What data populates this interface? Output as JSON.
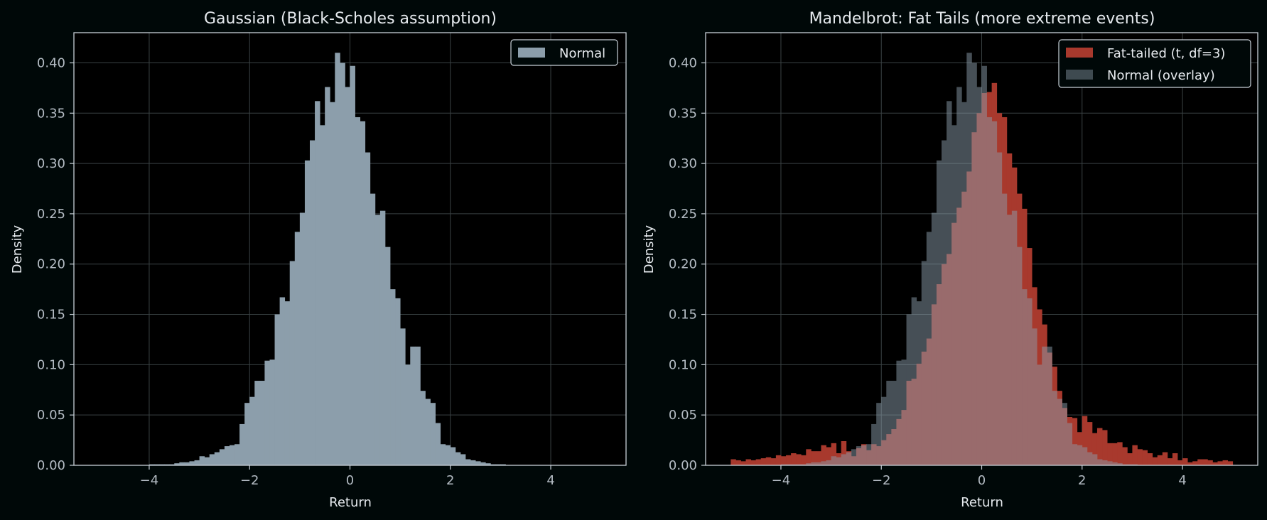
{
  "colors": {
    "background": "#000808",
    "axes_face": "#000000",
    "spine": "#c8d0d8",
    "grid": "#3a4244",
    "text": "#e6eaee",
    "tick_text": "#b4bcc4",
    "normal_fill": "#8c9eab",
    "fat_fill": "#a8392d",
    "overlay_fill": "#8c9eab",
    "legend_bg": "#000808",
    "legend_edge": "#c8d0d8"
  },
  "chart_data": [
    {
      "type": "bar",
      "title": "Gaussian (Black-Scholes assumption)",
      "xlabel": "Return",
      "ylabel": "Density",
      "xlim": [
        -5.5,
        5.5
      ],
      "ylim": [
        0,
        0.43
      ],
      "xticks": [
        -4,
        -2,
        0,
        2,
        4
      ],
      "xtick_labels": [
        "−4",
        "−2",
        "0",
        "2",
        "4"
      ],
      "yticks": [
        0,
        0.05,
        0.1,
        0.15,
        0.2,
        0.25,
        0.3,
        0.35,
        0.4
      ],
      "ytick_labels": [
        "0.00",
        "0.05",
        "0.10",
        "0.15",
        "0.20",
        "0.25",
        "0.30",
        "0.35",
        "0.40"
      ],
      "grid": true,
      "legend_position": "top-right",
      "series": [
        {
          "name": "Normal",
          "color_key": "normal_fill",
          "opacity": 1,
          "bin_start": -4.0,
          "bin_width": 0.1,
          "values": [
            0.001,
            0.001,
            0.001,
            0.001,
            0.001,
            0.002,
            0.003,
            0.003,
            0.004,
            0.005,
            0.009,
            0.008,
            0.011,
            0.013,
            0.016,
            0.019,
            0.02,
            0.021,
            0.041,
            0.062,
            0.068,
            0.084,
            0.084,
            0.104,
            0.105,
            0.15,
            0.167,
            0.163,
            0.203,
            0.232,
            0.251,
            0.303,
            0.323,
            0.362,
            0.338,
            0.376,
            0.361,
            0.41,
            0.4,
            0.376,
            0.397,
            0.346,
            0.342,
            0.311,
            0.27,
            0.249,
            0.253,
            0.217,
            0.175,
            0.166,
            0.136,
            0.1,
            0.118,
            0.118,
            0.074,
            0.066,
            0.062,
            0.042,
            0.021,
            0.02,
            0.018,
            0.013,
            0.011,
            0.006,
            0.005,
            0.004,
            0.003,
            0.002,
            0.001,
            0.001,
            0.001
          ]
        }
      ]
    },
    {
      "type": "bar",
      "title": "Mandelbrot: Fat Tails (more extreme events)",
      "xlabel": "Return",
      "ylabel": "Density",
      "xlim": [
        -5.5,
        5.5
      ],
      "ylim": [
        0,
        0.43
      ],
      "xticks": [
        -4,
        -2,
        0,
        2,
        4
      ],
      "xtick_labels": [
        "−4",
        "−2",
        "0",
        "2",
        "4"
      ],
      "yticks": [
        0,
        0.05,
        0.1,
        0.15,
        0.2,
        0.25,
        0.3,
        0.35,
        0.4
      ],
      "ytick_labels": [
        "0.00",
        "0.05",
        "0.10",
        "0.15",
        "0.20",
        "0.25",
        "0.30",
        "0.35",
        "0.40"
      ],
      "grid": true,
      "legend_position": "top-right",
      "series": [
        {
          "name": "Fat-tailed (t, df=3)",
          "color_key": "fat_fill",
          "opacity": 1,
          "bin_start": -5.0,
          "bin_width": 0.1,
          "values": [
            0.006,
            0.005,
            0.004,
            0.006,
            0.005,
            0.006,
            0.007,
            0.008,
            0.007,
            0.01,
            0.009,
            0.01,
            0.012,
            0.011,
            0.01,
            0.016,
            0.014,
            0.014,
            0.02,
            0.018,
            0.022,
            0.012,
            0.024,
            0.014,
            0.009,
            0.017,
            0.021,
            0.015,
            0.021,
            0.019,
            0.025,
            0.031,
            0.036,
            0.046,
            0.055,
            0.084,
            0.086,
            0.101,
            0.113,
            0.126,
            0.16,
            0.18,
            0.2,
            0.21,
            0.241,
            0.256,
            0.272,
            0.292,
            0.331,
            0.35,
            0.37,
            0.371,
            0.38,
            0.35,
            0.346,
            0.31,
            0.296,
            0.27,
            0.255,
            0.216,
            0.177,
            0.155,
            0.14,
            0.112,
            0.098,
            0.074,
            0.057,
            0.048,
            0.047,
            0.033,
            0.049,
            0.043,
            0.032,
            0.037,
            0.035,
            0.022,
            0.022,
            0.023,
            0.018,
            0.012,
            0.02,
            0.016,
            0.015,
            0.012,
            0.008,
            0.01,
            0.013,
            0.007,
            0.012,
            0.005,
            0.007,
            0.003,
            0.004,
            0.006,
            0.006,
            0.005,
            0.003,
            0.004,
            0.005,
            0.004
          ]
        },
        {
          "name": "Normal (overlay)",
          "color_key": "overlay_fill",
          "opacity": 0.5,
          "bin_start": -4.0,
          "bin_width": 0.1,
          "values": [
            0.001,
            0.001,
            0.001,
            0.001,
            0.001,
            0.002,
            0.003,
            0.003,
            0.004,
            0.005,
            0.009,
            0.008,
            0.011,
            0.013,
            0.016,
            0.019,
            0.02,
            0.021,
            0.041,
            0.062,
            0.068,
            0.084,
            0.084,
            0.104,
            0.105,
            0.15,
            0.167,
            0.163,
            0.203,
            0.232,
            0.251,
            0.303,
            0.323,
            0.362,
            0.338,
            0.376,
            0.361,
            0.41,
            0.4,
            0.376,
            0.397,
            0.346,
            0.342,
            0.311,
            0.27,
            0.249,
            0.253,
            0.217,
            0.175,
            0.166,
            0.136,
            0.1,
            0.118,
            0.118,
            0.074,
            0.066,
            0.062,
            0.042,
            0.021,
            0.02,
            0.018,
            0.013,
            0.011,
            0.006,
            0.005,
            0.004,
            0.003,
            0.002,
            0.001,
            0.001,
            0.001
          ]
        }
      ]
    }
  ]
}
